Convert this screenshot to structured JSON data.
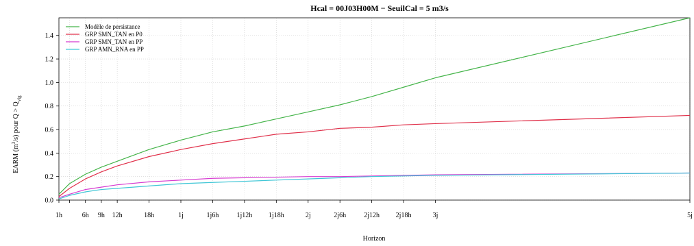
{
  "chart_data": {
    "type": "line",
    "title": "Hcal = 00J03H00M − SeuilCal = 5 m3/s",
    "xlabel": "Horizon",
    "ylabel": "EARM (m3/s) pour Q > Qvig",
    "ylabel_parts": {
      "before_sup": "EARM (m",
      "sup": "3",
      "middle": "/s) pour Q > Q",
      "sub": "vig"
    },
    "x_unit": "hours",
    "xlim": [
      1,
      120
    ],
    "ylim": [
      0,
      1.55
    ],
    "grid": true,
    "legend_position": "top-left",
    "x_ticks": [
      {
        "value": 1,
        "label": "1h"
      },
      {
        "value": 3,
        "label": ""
      },
      {
        "value": 6,
        "label": "6h"
      },
      {
        "value": 9,
        "label": "9h"
      },
      {
        "value": 12,
        "label": "12h"
      },
      {
        "value": 18,
        "label": "18h"
      },
      {
        "value": 24,
        "label": "1j"
      },
      {
        "value": 30,
        "label": "1j6h"
      },
      {
        "value": 36,
        "label": "1j12h"
      },
      {
        "value": 42,
        "label": "1j18h"
      },
      {
        "value": 48,
        "label": "2j"
      },
      {
        "value": 54,
        "label": "2j6h"
      },
      {
        "value": 60,
        "label": "2j12h"
      },
      {
        "value": 66,
        "label": "2j18h"
      },
      {
        "value": 72,
        "label": "3j"
      },
      {
        "value": 120,
        "label": "5j"
      }
    ],
    "y_ticks": [
      {
        "value": 0.0,
        "label": "0.0"
      },
      {
        "value": 0.2,
        "label": "0.2"
      },
      {
        "value": 0.4,
        "label": "0.4"
      },
      {
        "value": 0.6,
        "label": "0.6"
      },
      {
        "value": 0.8,
        "label": "0.8"
      },
      {
        "value": 1.0,
        "label": "1.0"
      },
      {
        "value": 1.2,
        "label": "1.2"
      },
      {
        "value": 1.4,
        "label": "1.4"
      }
    ],
    "x": [
      1,
      3,
      6,
      9,
      12,
      18,
      24,
      30,
      36,
      42,
      48,
      54,
      60,
      66,
      72,
      120
    ],
    "series": [
      {
        "name": "Modèle de persistance",
        "color": "#44b449",
        "values": [
          0.05,
          0.14,
          0.22,
          0.28,
          0.33,
          0.43,
          0.51,
          0.58,
          0.63,
          0.69,
          0.75,
          0.81,
          0.88,
          0.96,
          1.04,
          1.55
        ]
      },
      {
        "name": "GRP SMN_TAN en P0",
        "color": "#e0304a",
        "values": [
          0.03,
          0.1,
          0.18,
          0.24,
          0.29,
          0.37,
          0.43,
          0.48,
          0.52,
          0.56,
          0.58,
          0.61,
          0.62,
          0.64,
          0.65,
          0.72
        ]
      },
      {
        "name": "GRP SMN_TAN en PP",
        "color": "#d63bd0",
        "values": [
          0.02,
          0.05,
          0.09,
          0.11,
          0.13,
          0.155,
          0.17,
          0.185,
          0.19,
          0.195,
          0.2,
          0.2,
          0.205,
          0.21,
          0.215,
          0.23
        ]
      },
      {
        "name": "GRP AMN_RNA en PP",
        "color": "#3fc6d6",
        "values": [
          0.01,
          0.04,
          0.07,
          0.09,
          0.1,
          0.12,
          0.14,
          0.15,
          0.16,
          0.17,
          0.18,
          0.19,
          0.2,
          0.205,
          0.21,
          0.23
        ]
      }
    ]
  }
}
